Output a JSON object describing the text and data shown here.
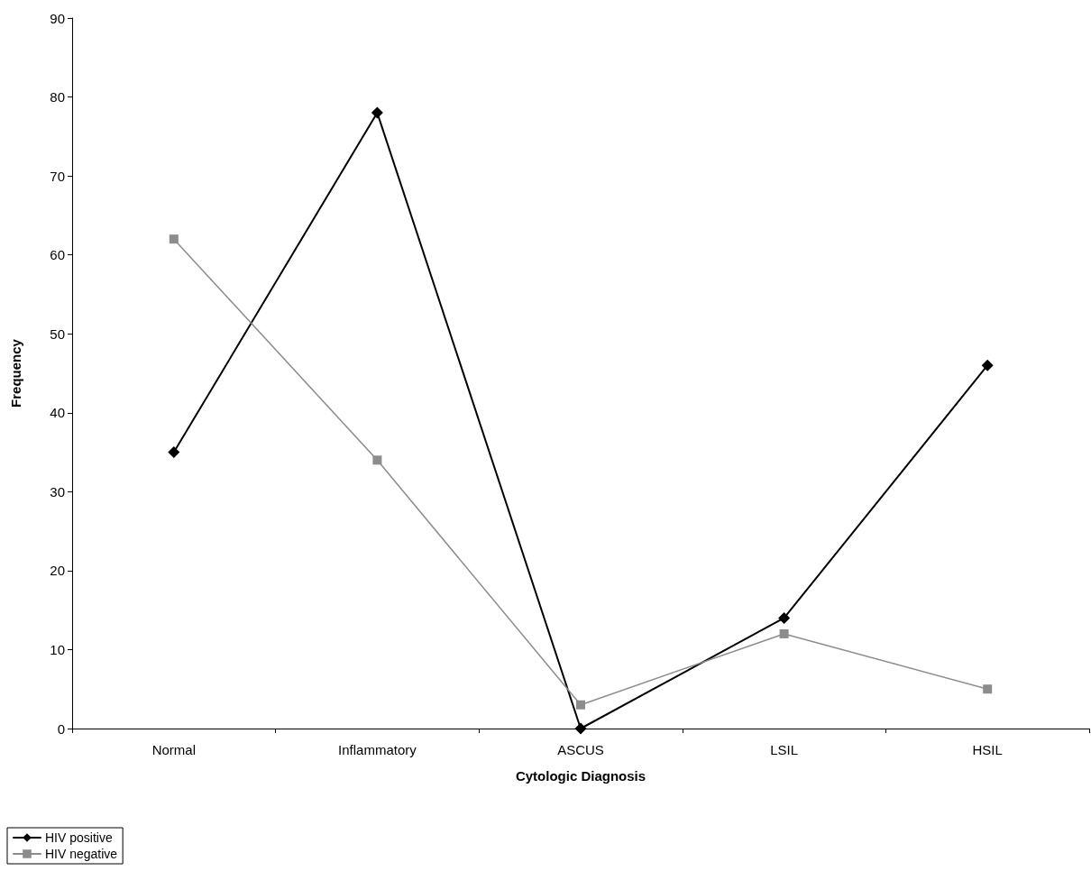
{
  "chart_data": {
    "type": "line",
    "xlabel": "Cytologic Diagnosis",
    "ylabel": "Frequency",
    "categories": [
      "Normal",
      "Inflammatory",
      "ASCUS",
      "LSIL",
      "HSIL"
    ],
    "series": [
      {
        "name": "HIV positive",
        "color": "#000000",
        "marker": "diamond",
        "values": [
          35,
          78,
          0,
          14,
          46
        ]
      },
      {
        "name": "HIV negative",
        "color": "#8c8c8c",
        "marker": "square",
        "values": [
          62,
          34,
          3,
          12,
          5
        ]
      }
    ],
    "ylim": [
      0,
      90
    ],
    "yticks": [
      0,
      10,
      20,
      30,
      40,
      50,
      60,
      70,
      80,
      90
    ],
    "grid": false,
    "legend": "bottom left",
    "line_style": "solid"
  }
}
